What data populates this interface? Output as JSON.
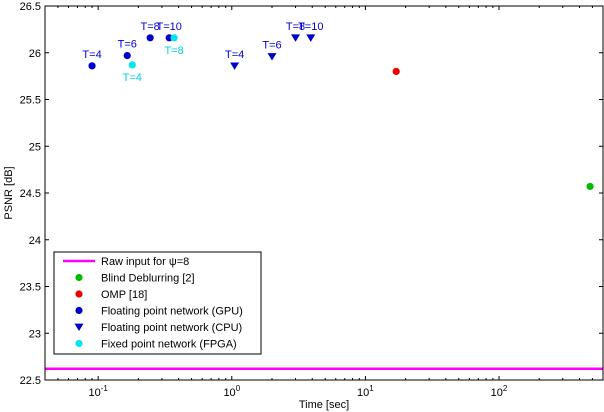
{
  "chart_data": {
    "type": "scatter",
    "title": "",
    "xlabel": "Time [sec]",
    "ylabel": "PSNR [dB]",
    "xscale": "log",
    "xlim": [
      0.04,
      600
    ],
    "ylim": [
      22.5,
      26.5
    ],
    "x_ticks": [
      {
        "value": 0.1,
        "mantissa": "10",
        "exp": "-1"
      },
      {
        "value": 1,
        "mantissa": "10",
        "exp": "0"
      },
      {
        "value": 10,
        "mantissa": "10",
        "exp": "1"
      },
      {
        "value": 100,
        "mantissa": "10",
        "exp": "2"
      }
    ],
    "y_ticks": [
      "22.5",
      "23",
      "23.5",
      "24",
      "24.5",
      "25",
      "25.5",
      "26",
      "26.5"
    ],
    "legend_position": "bottom-left",
    "reference_line": {
      "name": "Raw input for ψ=8",
      "y": 22.62,
      "color": "#ff00ff"
    },
    "series": [
      {
        "name": "Blind Deblurring [2]",
        "marker": "circle",
        "color": "#00bb00",
        "points": [
          {
            "x": 480,
            "y": 24.57,
            "label": ""
          }
        ]
      },
      {
        "name": "OMP [18]",
        "marker": "circle",
        "color": "#ee0000",
        "points": [
          {
            "x": 17,
            "y": 25.8,
            "label": ""
          }
        ]
      },
      {
        "name": "Floating point network (GPU)",
        "marker": "circle",
        "color": "#0000cc",
        "label_color": "#0000cc",
        "points": [
          {
            "x": 0.09,
            "y": 25.86,
            "label": "T=4",
            "label_pos": "above"
          },
          {
            "x": 0.165,
            "y": 25.97,
            "label": "T=6",
            "label_pos": "above"
          },
          {
            "x": 0.245,
            "y": 26.16,
            "label": "T=8",
            "label_pos": "above"
          },
          {
            "x": 0.34,
            "y": 26.16,
            "label": "T=10",
            "label_pos": "above"
          }
        ]
      },
      {
        "name": "Floating point network (CPU)",
        "marker": "triangle-down",
        "color": "#0000cc",
        "label_color": "#0000cc",
        "points": [
          {
            "x": 1.05,
            "y": 25.86,
            "label": "T=4",
            "label_pos": "above"
          },
          {
            "x": 2.0,
            "y": 25.96,
            "label": "T=6",
            "label_pos": "above"
          },
          {
            "x": 3.0,
            "y": 26.16,
            "label": "T=8",
            "label_pos": "above"
          },
          {
            "x": 3.9,
            "y": 26.16,
            "label": "T=10",
            "label_pos": "above"
          }
        ]
      },
      {
        "name": "Fixed point network (FPGA)",
        "marker": "circle",
        "color": "#00e5ee",
        "label_color": "#00d0e0",
        "points": [
          {
            "x": 0.18,
            "y": 25.87,
            "label": "T=4",
            "label_pos": "below"
          },
          {
            "x": 0.37,
            "y": 26.16,
            "label": "T=8",
            "label_pos": "below"
          }
        ]
      }
    ]
  }
}
